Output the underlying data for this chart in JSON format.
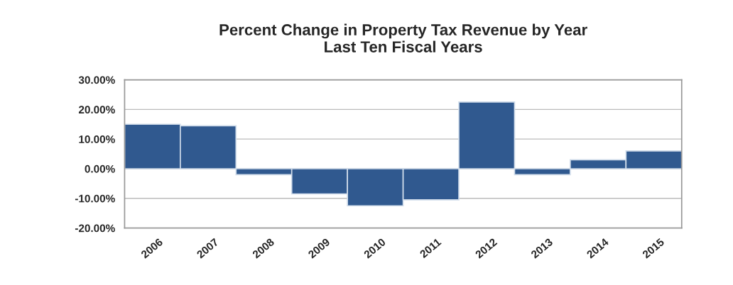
{
  "chart_data": {
    "type": "bar",
    "title": "Percent Change in Property Tax Revenue by Year\nLast Ten Fiscal Years",
    "categories": [
      "2006",
      "2007",
      "2008",
      "2009",
      "2010",
      "2011",
      "2012",
      "2013",
      "2014",
      "2015"
    ],
    "values": [
      15,
      14.5,
      -2,
      -8.5,
      -12.5,
      -10.5,
      22.5,
      -2,
      3,
      6
    ],
    "color": "#30598f",
    "ylim": [
      -20,
      30
    ],
    "yticks": [
      {
        "value": -20,
        "label": "-20.00%"
      },
      {
        "value": -10,
        "label": "-10.00%"
      },
      {
        "value": 0,
        "label": "0.00%"
      },
      {
        "value": 10,
        "label": "10.00%"
      },
      {
        "value": 20,
        "label": "20.00%"
      },
      {
        "value": 30,
        "label": "30.00%"
      }
    ],
    "grid": "y"
  }
}
